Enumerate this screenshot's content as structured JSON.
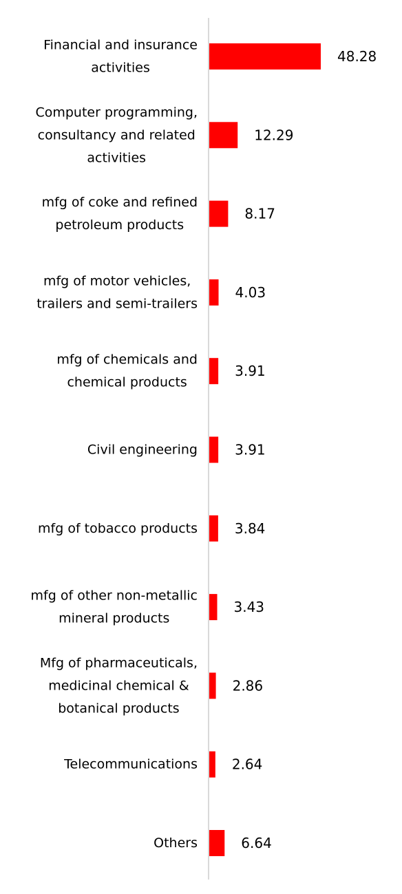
{
  "chart_data": {
    "type": "bar",
    "orientation": "horizontal",
    "bar_color": "#ff0000",
    "axis_color": "#d9d9d9",
    "grid": false,
    "legend": "none",
    "xlim": [
      0,
      55
    ],
    "categories": [
      "Financial and insurance activities",
      "Computer programming, consultancy and related activities",
      "mfg of coke and refined petroleum products",
      "mfg of motor vehicles, trailers and semi-trailers",
      "mfg of chemicals and chemical products",
      "Civil engineering",
      "mfg of tobacco products",
      "mfg of other non-metallic mineral products",
      "Mfg of pharmaceuticals, medicinal chemical & botanical products",
      "Telecommunications",
      "Others"
    ],
    "category_label_lines": [
      [
        "Financial and insurance",
        "activities"
      ],
      [
        "Computer programming,",
        "consultancy and related",
        "activities"
      ],
      [
        "mfg of coke and refined",
        "petroleum products"
      ],
      [
        "mfg of motor vehicles,",
        "trailers and semi-trailers"
      ],
      [
        "mfg of chemicals and",
        "chemical products"
      ],
      [
        "Civil engineering"
      ],
      [
        "mfg of tobacco products"
      ],
      [
        "mfg of other non-metallic",
        "mineral products"
      ],
      [
        "Mfg of pharmaceuticals,",
        "medicinal chemical &",
        "botanical products"
      ],
      [
        "Telecommunications"
      ],
      [
        "Others"
      ]
    ],
    "values": [
      48.28,
      12.29,
      8.17,
      4.03,
      3.91,
      3.91,
      3.84,
      3.43,
      2.86,
      2.64,
      6.64
    ],
    "value_labels": [
      "48.28",
      "12.29",
      "8.17",
      "4.03",
      "3.91",
      "3.91",
      "3.84",
      "3.43",
      "2.86",
      "2.64",
      "6.64"
    ]
  }
}
